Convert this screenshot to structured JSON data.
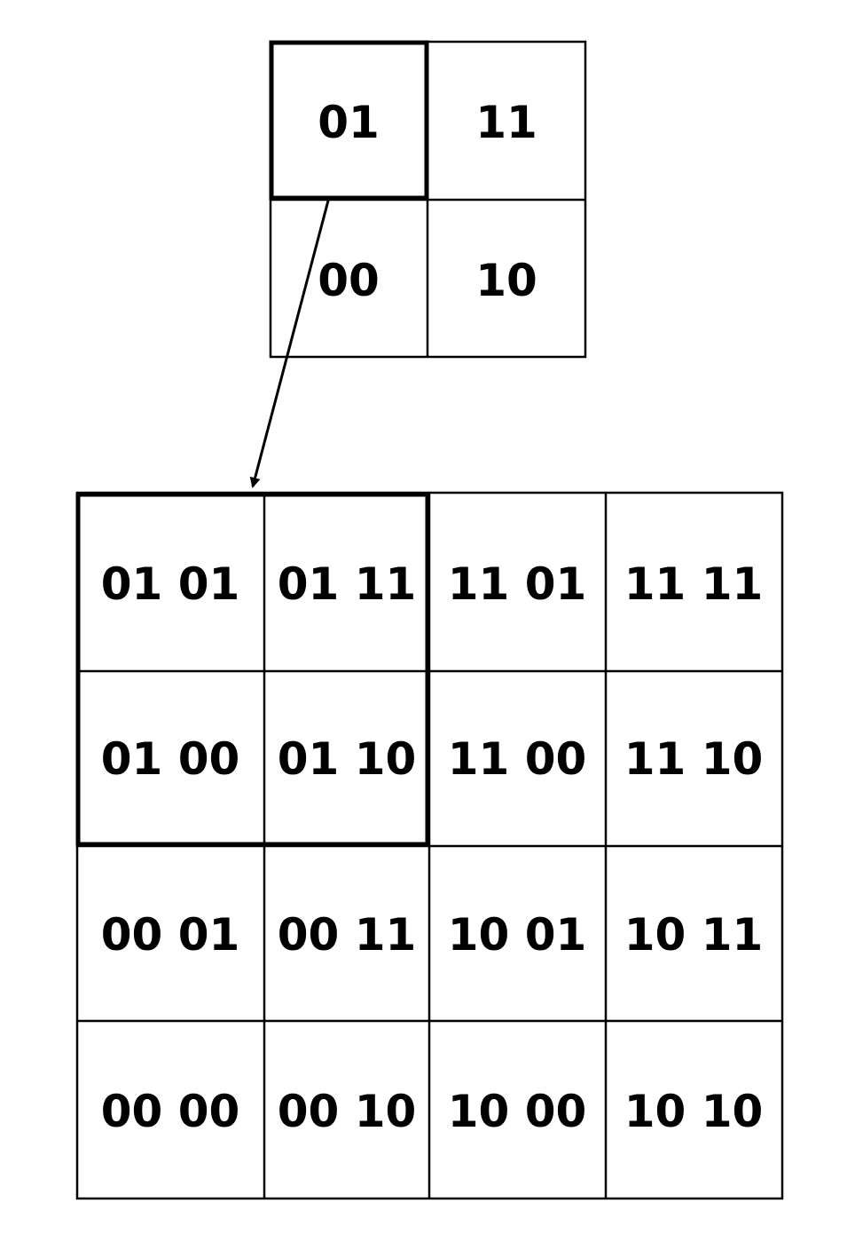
{
  "small_grid": {
    "rows": [
      [
        "01",
        "11"
      ],
      [
        "00",
        "10"
      ]
    ],
    "highlighted_cell": "01"
  },
  "large_grid": {
    "rows": [
      [
        "01 01",
        "01 11",
        "11 01",
        "11 11"
      ],
      [
        "01 00",
        "01 10",
        "11 00",
        "11 10"
      ],
      [
        "00 01",
        "00 11",
        "10 01",
        "10 11"
      ],
      [
        "00 00",
        "00 10",
        "10 00",
        "10 10"
      ]
    ],
    "highlighted_block": "01"
  },
  "colors": {
    "line": "#000000",
    "text": "#000000",
    "background": "#ffffff"
  }
}
